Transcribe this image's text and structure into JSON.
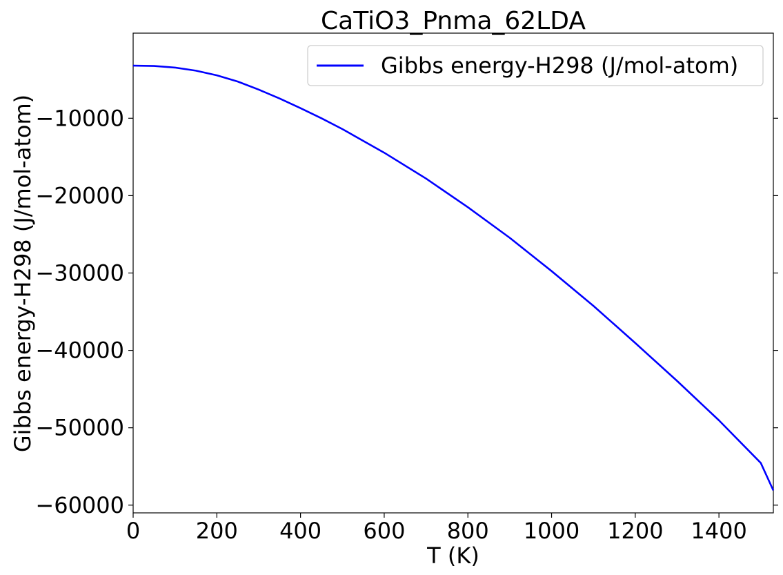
{
  "chart_data": {
    "type": "line",
    "title": "CaTiO3_Pnma_62LDA",
    "xlabel": "T (K)",
    "ylabel": "Gibbs energy-H298 (J/mol-atom)",
    "xlim": [
      0,
      1530
    ],
    "ylim": [
      -61000,
      1000
    ],
    "xticks": [
      0,
      200,
      400,
      600,
      800,
      1000,
      1200,
      1400
    ],
    "xtick_labels": [
      "0",
      "200",
      "400",
      "600",
      "800",
      "1000",
      "1200",
      "1400"
    ],
    "yticks": [
      -10000,
      -20000,
      -30000,
      -40000,
      -50000,
      -60000
    ],
    "ytick_labels": [
      "−10000",
      "−20000",
      "−30000",
      "−40000",
      "−50000",
      "−60000"
    ],
    "grid": false,
    "legend_position": "top-right",
    "series": [
      {
        "name": "Gibbs energy-H298 (J/mol-atom)",
        "color": "#0000ff",
        "x": [
          0,
          50,
          100,
          150,
          200,
          250,
          300,
          350,
          400,
          450,
          500,
          600,
          700,
          800,
          900,
          1000,
          1100,
          1200,
          1300,
          1400,
          1500,
          1530
        ],
        "y": [
          -3200,
          -3250,
          -3450,
          -3850,
          -4450,
          -5250,
          -6300,
          -7450,
          -8700,
          -10000,
          -11400,
          -14450,
          -17800,
          -21500,
          -25450,
          -29750,
          -34250,
          -39050,
          -43950,
          -49050,
          -54550,
          -58100
        ]
      }
    ]
  }
}
